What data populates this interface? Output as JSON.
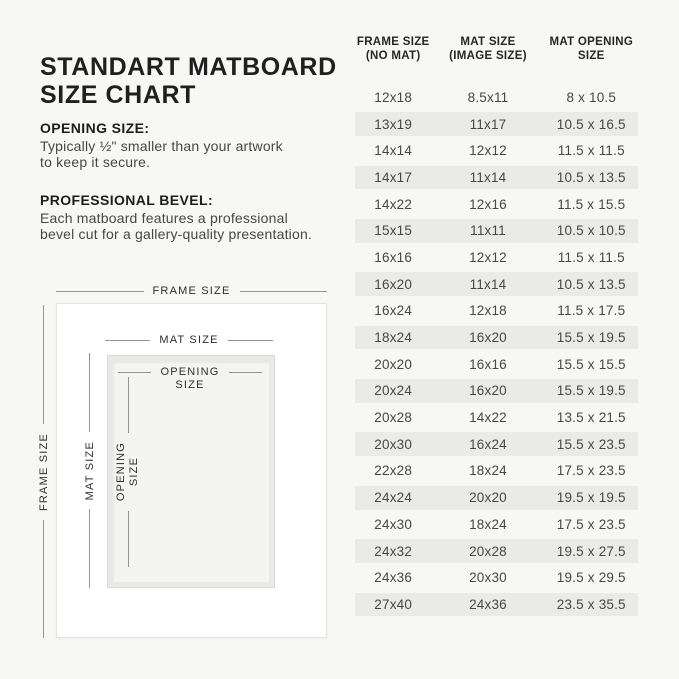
{
  "colors": {
    "background": "#f7f7f5",
    "row_alt": "#eaeae8",
    "dimension_line": "#949494",
    "heading_text": "#1f1f1f",
    "body_text": "#474747"
  },
  "title": {
    "line1": "STANDART MATBOARD",
    "line2": "SIZE CHART"
  },
  "notes": [
    {
      "heading": "OPENING SIZE:",
      "line1": "Typically ½\" smaller than your artwork",
      "line2": "to keep it secure."
    },
    {
      "heading": "PROFESSIONAL BEVEL:",
      "line1": "Each matboard features a professional",
      "line2": "bevel cut for a gallery-quality presentation."
    }
  ],
  "diagram": {
    "frame_size_label": "FRAME SIZE",
    "mat_size_label": "MAT SIZE",
    "opening_size_line1": "OPENING",
    "opening_size_line2": "SIZE"
  },
  "table": {
    "headers": [
      {
        "line1": "FRAME SIZE",
        "line2": "(NO MAT)"
      },
      {
        "line1": "MAT SIZE",
        "line2": "(IMAGE SIZE)"
      },
      {
        "line1": "MAT OPENING",
        "line2": "SIZE"
      }
    ],
    "rows": [
      [
        "12x18",
        "8.5x11",
        "8 x 10.5"
      ],
      [
        "13x19",
        "11x17",
        "10.5 x 16.5"
      ],
      [
        "14x14",
        "12x12",
        "11.5 x 11.5"
      ],
      [
        "14x17",
        "11x14",
        "10.5 x 13.5"
      ],
      [
        "14x22",
        "12x16",
        "11.5 x 15.5"
      ],
      [
        "15x15",
        "11x11",
        "10.5 x 10.5"
      ],
      [
        "16x16",
        "12x12",
        "11.5 x 11.5"
      ],
      [
        "16x20",
        "11x14",
        "10.5 x 13.5"
      ],
      [
        "16x24",
        "12x18",
        "11.5 x 17.5"
      ],
      [
        "18x24",
        "16x20",
        "15.5 x 19.5"
      ],
      [
        "20x20",
        "16x16",
        "15.5 x 15.5"
      ],
      [
        "20x24",
        "16x20",
        "15.5 x 19.5"
      ],
      [
        "20x28",
        "14x22",
        "13.5 x 21.5"
      ],
      [
        "20x30",
        "16x24",
        "15.5 x 23.5"
      ],
      [
        "22x28",
        "18x24",
        "17.5 x 23.5"
      ],
      [
        "24x24",
        "20x20",
        "19.5 x 19.5"
      ],
      [
        "24x30",
        "18x24",
        "17.5 x 23.5"
      ],
      [
        "24x32",
        "20x28",
        "19.5 x 27.5"
      ],
      [
        "24x36",
        "20x30",
        "19.5 x 29.5"
      ],
      [
        "27x40",
        "24x36",
        "23.5 x 35.5"
      ]
    ]
  }
}
